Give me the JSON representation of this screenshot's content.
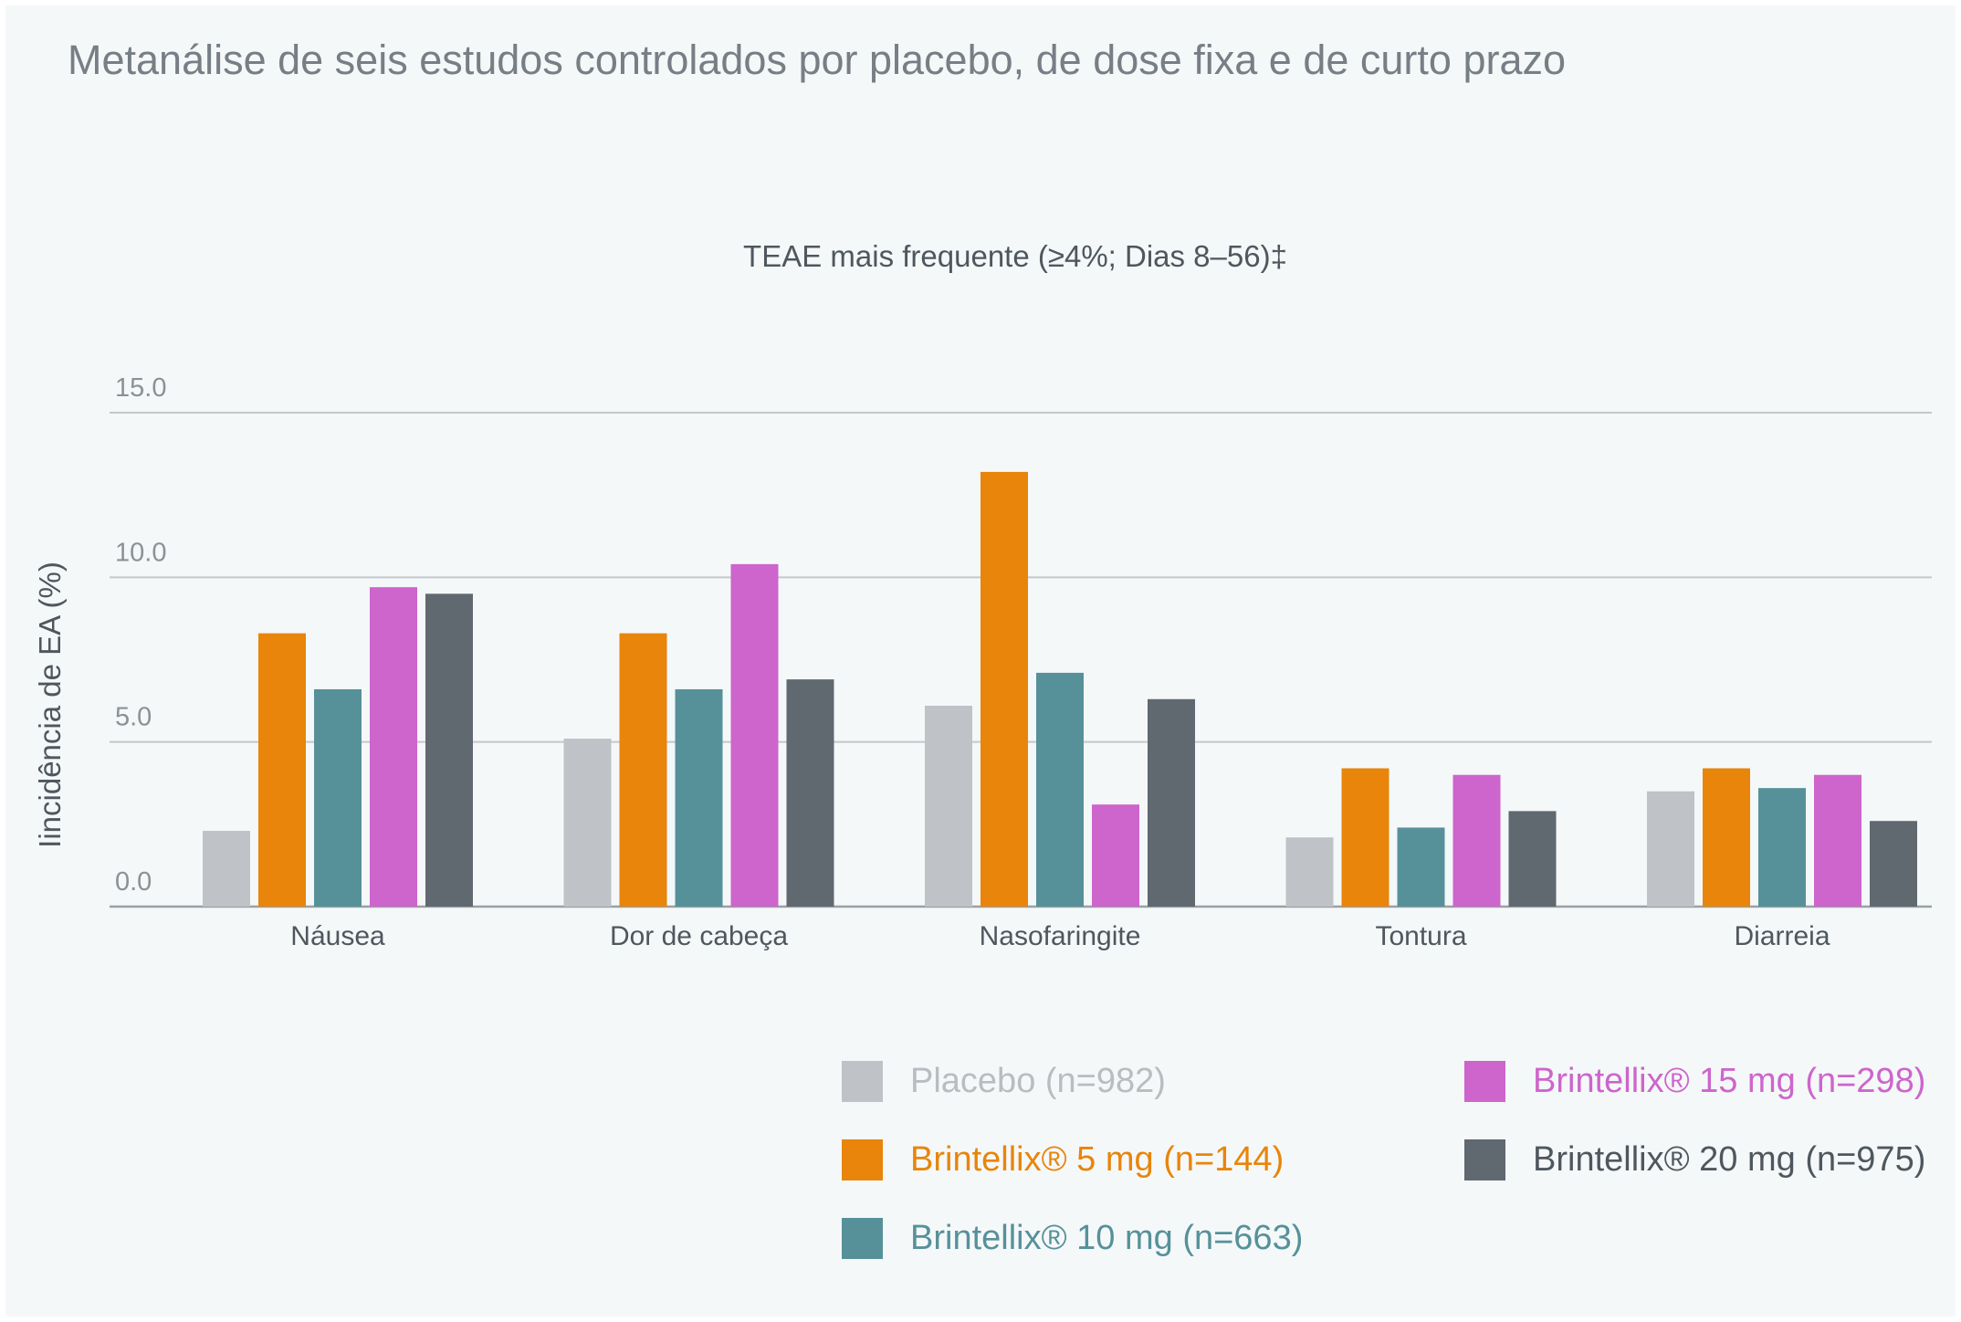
{
  "page": {
    "title": "Metanálise de seis estudos controlados por placebo, de dose fixa e de curto prazo"
  },
  "chart_data": {
    "type": "bar",
    "title": "TEAE mais frequente (≥4%; Dias 8–56)‡",
    "ylabel": "Iincidência de EA (%)",
    "xlabel": "",
    "ylim": [
      0,
      15
    ],
    "yticks": [
      "0.0",
      "5.0",
      "10.0",
      "15.0"
    ],
    "ytick_values": [
      0,
      5,
      10,
      15
    ],
    "grid": true,
    "legend_position": "bottom-right",
    "categories": [
      "Náusea",
      "Dor de cabeça",
      "Nasofaringite",
      "Tontura",
      "Diarreia"
    ],
    "series": [
      {
        "name": "Placebo (n=982)",
        "color": "#bfc2c6",
        "values": [
          2.3,
          5.1,
          6.1,
          2.1,
          3.5
        ]
      },
      {
        "name": "Brintellix® 5 mg (n=144)",
        "color": "#e8850a",
        "values": [
          8.3,
          8.3,
          13.2,
          4.2,
          4.2
        ]
      },
      {
        "name": "Brintellix® 10 mg (n=663)",
        "color": "#56919a",
        "values": [
          6.6,
          6.6,
          7.1,
          2.4,
          3.6
        ]
      },
      {
        "name": "Brintellix® 15 mg (n=298)",
        "color": "#cd65cc",
        "values": [
          9.7,
          10.4,
          3.1,
          4.0,
          4.0
        ]
      },
      {
        "name": "Brintellix® 20 mg (n=975)",
        "color": "#606870",
        "values": [
          9.5,
          6.9,
          6.3,
          2.9,
          2.6
        ]
      }
    ]
  }
}
